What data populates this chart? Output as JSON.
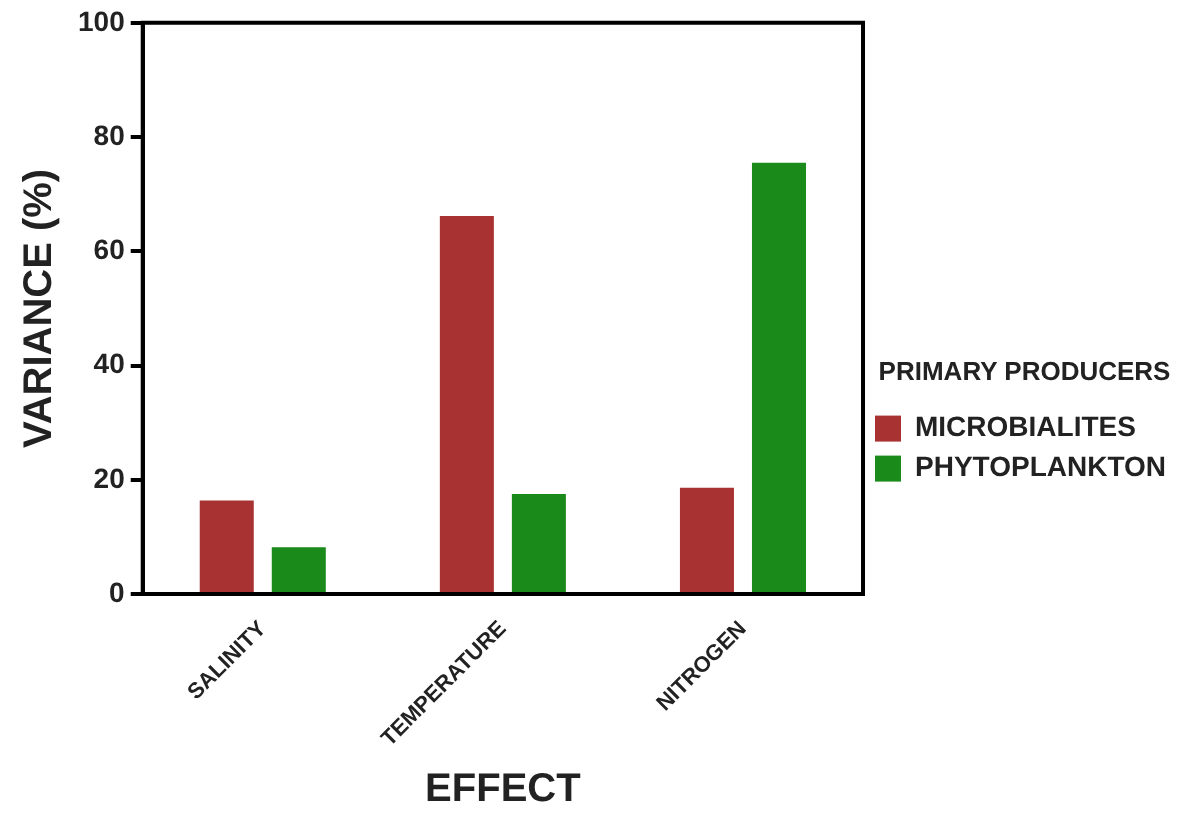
{
  "chart_data": {
    "type": "bar",
    "xlabel": "EFFECT",
    "ylabel": "VARIANCE (%)",
    "legend_title": "PRIMARY PRODUCERS",
    "legend": "right",
    "categories": [
      "SALINITY",
      "TEMPERATURE",
      "NITROGEN"
    ],
    "series": [
      {
        "name": "MICROBIALITES",
        "color": "#a83232",
        "values": [
          16.4,
          66.2,
          18.6
        ]
      },
      {
        "name": "PHYTOPLANKTON",
        "color": "#1a8a1a",
        "values": [
          8.2,
          17.5,
          75.5
        ]
      }
    ],
    "ylim": [
      0,
      100
    ],
    "yticks": [
      0,
      20,
      40,
      60,
      80,
      100
    ]
  }
}
